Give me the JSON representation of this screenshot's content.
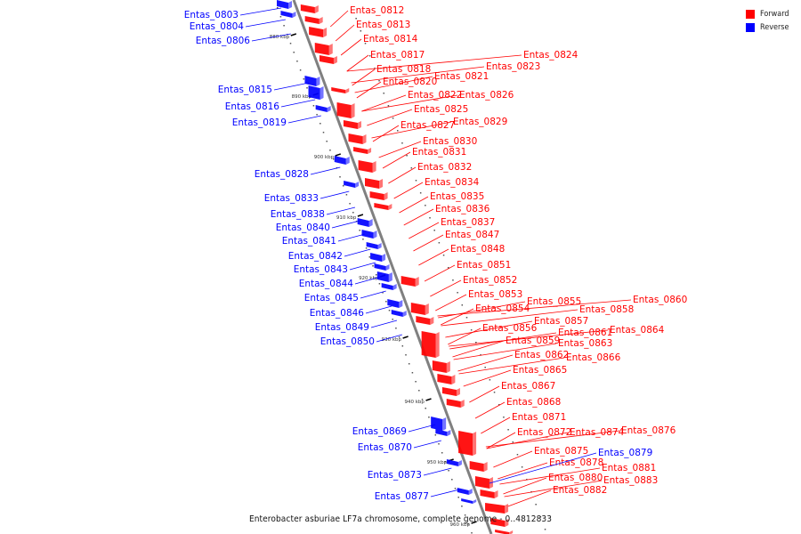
{
  "colors": {
    "forward": "#ff0000",
    "reverse": "#0000ff",
    "axis": "#808080"
  },
  "legend": {
    "forward_label": "Forward",
    "reverse_label": "Reverse"
  },
  "caption": "Enterobacter asburiae LF7a chromosome, complete genome - 0..4812833",
  "ticks": [
    {
      "label": "880 kbp",
      "kbp": 880
    },
    {
      "label": "890 kbp",
      "kbp": 890
    },
    {
      "label": "900 kbp",
      "kbp": 900
    },
    {
      "label": "910 kbp",
      "kbp": 910
    },
    {
      "label": "920 kbp",
      "kbp": 920
    },
    {
      "label": "930 kbp",
      "kbp": 930
    },
    {
      "label": "940 kbp",
      "kbp": 940
    },
    {
      "label": "950 kbp",
      "kbp": 950
    },
    {
      "label": "960 kbp",
      "kbp": 960
    }
  ],
  "forward_labels": [
    "Entas_0812",
    "Entas_0813",
    "Entas_0814",
    "Entas_0817",
    "Entas_0818",
    "Entas_0820",
    "Entas_0821",
    "Entas_0823",
    "Entas_0824",
    "Entas_0822",
    "Entas_0826",
    "Entas_0825",
    "Entas_0827",
    "Entas_0829",
    "Entas_0830",
    "Entas_0831",
    "Entas_0832",
    "Entas_0834",
    "Entas_0835",
    "Entas_0836",
    "Entas_0837",
    "Entas_0847",
    "Entas_0848",
    "Entas_0851",
    "Entas_0852",
    "Entas_0853",
    "Entas_0855",
    "Entas_0860",
    "Entas_0854",
    "Entas_0858",
    "Entas_0857",
    "Entas_0856",
    "Entas_0861",
    "Entas_0864",
    "Entas_0859",
    "Entas_0863",
    "Entas_0862",
    "Entas_0866",
    "Entas_0865",
    "Entas_0867",
    "Entas_0868",
    "Entas_0871",
    "Entas_0872",
    "Entas_0874",
    "Entas_0876",
    "Entas_0875",
    "Entas_0878",
    "Entas_0881",
    "Entas_0880",
    "Entas_0883",
    "Entas_0882"
  ],
  "reverse_labels": [
    "Entas_0803",
    "Entas_0804",
    "Entas_0806",
    "Entas_0815",
    "Entas_0816",
    "Entas_0819",
    "Entas_0828",
    "Entas_0833",
    "Entas_0838",
    "Entas_0840",
    "Entas_0841",
    "Entas_0842",
    "Entas_0843",
    "Entas_0844",
    "Entas_0845",
    "Entas_0846",
    "Entas_0849",
    "Entas_0850",
    "Entas_0869",
    "Entas_0870",
    "Entas_0873",
    "Entas_0877",
    "Entas_0879"
  ]
}
